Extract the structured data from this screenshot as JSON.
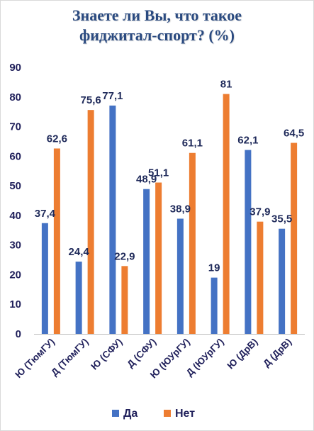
{
  "chart_data": {
    "type": "bar",
    "title_lines": [
      "Знаете ли Вы, что такое",
      "фиджитал-спорт? (%)"
    ],
    "categories": [
      "Ю (ТюмГУ)",
      "Д (ТюмГУ)",
      "Ю (СФУ)",
      "Д (СФУ)",
      "Ю (ЮУрГУ)",
      "Д (ЮУрГУ)",
      "Ю (ДрВ)",
      "Д (ДрВ)"
    ],
    "series": [
      {
        "name": "Да",
        "color": "#4472c4",
        "values": [
          37.4,
          24.4,
          77.1,
          48.9,
          38.9,
          19,
          62.1,
          35.5
        ],
        "labels": [
          "37,4",
          "24,4",
          "77,1",
          "48,9",
          "38,9",
          "19",
          "62,1",
          "35,5"
        ]
      },
      {
        "name": "Нет",
        "color": "#ed7d31",
        "values": [
          62.6,
          75.6,
          22.9,
          51.1,
          61.1,
          81,
          37.9,
          64.5
        ],
        "labels": [
          "62,6",
          "75,6",
          "22,9",
          "51,1",
          "61,1",
          "81",
          "37,9",
          "64,5"
        ]
      }
    ],
    "ylim": [
      0,
      90
    ],
    "yticks": [
      0,
      10,
      20,
      30,
      40,
      50,
      60,
      70,
      80,
      90
    ],
    "grid": false,
    "legend_position": "bottom"
  }
}
